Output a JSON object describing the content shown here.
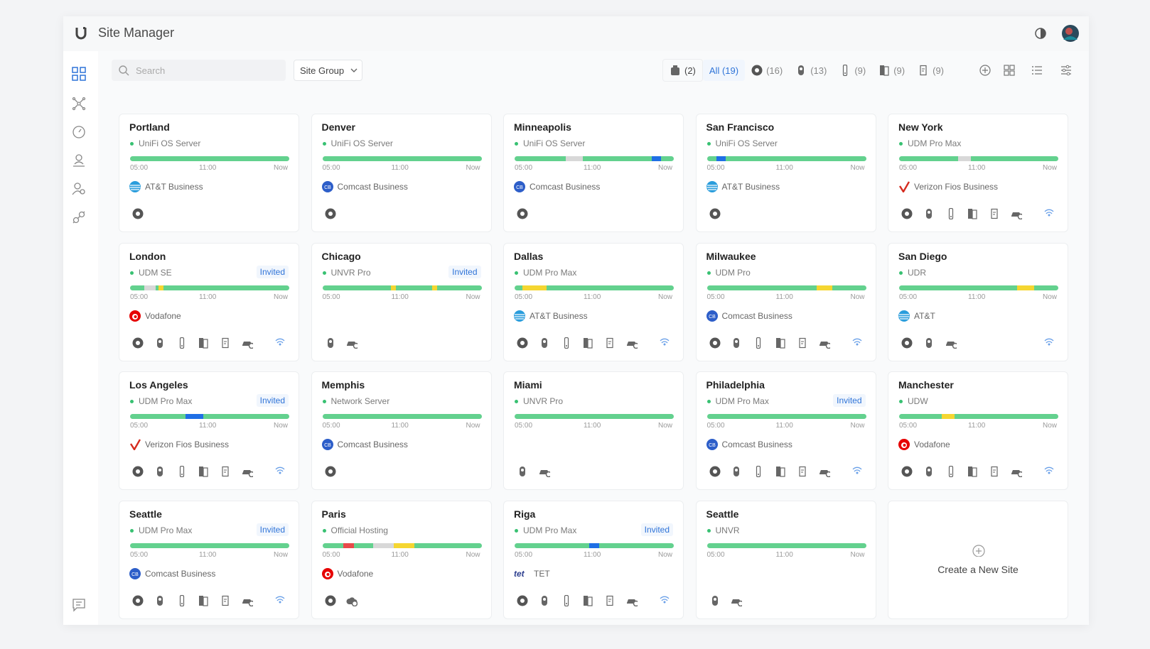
{
  "header": {
    "title": "Site Manager"
  },
  "toolbar": {
    "search_placeholder": "Search",
    "site_group": "Site Group",
    "filters": [
      {
        "icon": "gateway",
        "label": "(2)"
      },
      {
        "icon": "none",
        "label": "All (19)"
      },
      {
        "icon": "console",
        "label": "(16)"
      },
      {
        "icon": "camera",
        "label": "(13)"
      },
      {
        "icon": "doorbell",
        "label": "(9)"
      },
      {
        "icon": "door",
        "label": "(9)"
      },
      {
        "icon": "intercom",
        "label": "(9)"
      }
    ]
  },
  "timeline_labels": [
    "05:00",
    "11:00",
    "Now"
  ],
  "sites": [
    {
      "name": "Portland",
      "device": "UniFi OS Server",
      "isp": {
        "name": "AT&T Business",
        "logo": "att"
      },
      "timeline": [],
      "icons": [
        "console"
      ]
    },
    {
      "name": "Denver",
      "device": "UniFi OS Server",
      "isp": {
        "name": "Comcast Business",
        "logo": "cb"
      },
      "timeline": [],
      "icons": [
        "console"
      ]
    },
    {
      "name": "Minneapolis",
      "device": "UniFi OS Server",
      "isp": {
        "name": "Comcast Business",
        "logo": "cb"
      },
      "timeline": [
        {
          "status": "unknown",
          "from": 0.32,
          "to": 0.43
        },
        {
          "status": "down",
          "from": 0.86,
          "to": 0.92
        }
      ],
      "icons": [
        "console"
      ]
    },
    {
      "name": "San Francisco",
      "device": "UniFi OS Server",
      "isp": {
        "name": "AT&T Business",
        "logo": "att"
      },
      "timeline": [
        {
          "status": "down",
          "from": 0.06,
          "to": 0.12
        }
      ],
      "icons": [
        "console"
      ]
    },
    {
      "name": "New York",
      "device": "UDM Pro Max",
      "isp": {
        "name": "Verizon Fios Business",
        "logo": "verizon"
      },
      "timeline": [
        {
          "status": "unknown",
          "from": 0.37,
          "to": 0.45
        }
      ],
      "icons": [
        "console",
        "camera",
        "doorbell",
        "door",
        "intercom",
        "car",
        "wifi"
      ]
    },
    {
      "name": "London",
      "device": "UDM SE",
      "badge": "Invited",
      "isp": {
        "name": "Vodafone",
        "logo": "vodafone"
      },
      "timeline": [
        {
          "status": "unknown",
          "from": 0.09,
          "to": 0.16
        },
        {
          "status": "degraded",
          "from": 0.18,
          "to": 0.21
        }
      ],
      "icons": [
        "console",
        "camera",
        "doorbell",
        "door",
        "intercom",
        "car",
        "wifi"
      ]
    },
    {
      "name": "Chicago",
      "device": "UNVR Pro",
      "badge": "Invited",
      "timeline": [
        {
          "status": "degraded",
          "from": 0.43,
          "to": 0.46
        },
        {
          "status": "degraded",
          "from": 0.69,
          "to": 0.72
        }
      ],
      "icons": [
        "camera",
        "car"
      ]
    },
    {
      "name": "Dallas",
      "device": "UDM Pro Max",
      "isp": {
        "name": "AT&T Business",
        "logo": "att"
      },
      "timeline": [
        {
          "status": "degraded",
          "from": 0.05,
          "to": 0.2
        }
      ],
      "icons": [
        "console",
        "camera",
        "doorbell",
        "door",
        "intercom",
        "car",
        "wifi"
      ]
    },
    {
      "name": "Milwaukee",
      "device": "UDM Pro",
      "isp": {
        "name": "Comcast Business",
        "logo": "cb"
      },
      "timeline": [
        {
          "status": "degraded",
          "from": 0.69,
          "to": 0.79
        }
      ],
      "icons": [
        "console",
        "camera",
        "doorbell",
        "door",
        "intercom",
        "car",
        "wifi"
      ]
    },
    {
      "name": "San Diego",
      "device": "UDR",
      "isp": {
        "name": "AT&T",
        "logo": "att"
      },
      "timeline": [
        {
          "status": "degraded",
          "from": 0.74,
          "to": 0.85
        }
      ],
      "icons": [
        "console",
        "camera",
        "car",
        "wifi"
      ]
    },
    {
      "name": "Los Angeles",
      "device": "UDM Pro Max",
      "badge": "Invited",
      "isp": {
        "name": "Verizon Fios Business",
        "logo": "verizon"
      },
      "timeline": [
        {
          "status": "down",
          "from": 0.35,
          "to": 0.46
        }
      ],
      "icons": [
        "console",
        "camera",
        "doorbell",
        "door",
        "intercom",
        "car",
        "wifi"
      ]
    },
    {
      "name": "Memphis",
      "device": "Network Server",
      "isp": {
        "name": "Comcast Business",
        "logo": "cb"
      },
      "timeline": [],
      "icons": [
        "console"
      ]
    },
    {
      "name": "Miami",
      "device": "UNVR Pro",
      "timeline": [],
      "icons": [
        "camera",
        "car"
      ]
    },
    {
      "name": "Philadelphia",
      "device": "UDM Pro Max",
      "badge": "Invited",
      "isp": {
        "name": "Comcast Business",
        "logo": "cb"
      },
      "timeline": [],
      "icons": [
        "console",
        "camera",
        "doorbell",
        "door",
        "intercom",
        "car",
        "wifi"
      ]
    },
    {
      "name": "Manchester",
      "device": "UDW",
      "isp": {
        "name": "Vodafone",
        "logo": "vodafone"
      },
      "timeline": [
        {
          "status": "degraded",
          "from": 0.27,
          "to": 0.35
        }
      ],
      "icons": [
        "console",
        "camera",
        "doorbell",
        "door",
        "intercom",
        "car",
        "wifi"
      ]
    },
    {
      "name": "Seattle",
      "device": "UDM Pro Max",
      "badge": "Invited",
      "isp": {
        "name": "Comcast Business",
        "logo": "cb"
      },
      "timeline": [],
      "icons": [
        "console",
        "camera",
        "doorbell",
        "door",
        "intercom",
        "car",
        "wifi"
      ]
    },
    {
      "name": "Paris",
      "device": "Official Hosting",
      "isp": {
        "name": "Vodafone",
        "logo": "vodafone"
      },
      "timeline": [
        {
          "status": "offline",
          "from": 0.13,
          "to": 0.2
        },
        {
          "status": "unknown",
          "from": 0.32,
          "to": 0.45
        },
        {
          "status": "degraded",
          "from": 0.45,
          "to": 0.58
        }
      ],
      "icons": [
        "console",
        "cloud"
      ]
    },
    {
      "name": "Riga",
      "device": "UDM Pro Max",
      "badge": "Invited",
      "isp": {
        "name": "TET",
        "logo": "tet"
      },
      "timeline": [
        {
          "status": "down",
          "from": 0.47,
          "to": 0.53
        }
      ],
      "icons": [
        "console",
        "camera",
        "doorbell",
        "door",
        "intercom",
        "car",
        "wifi"
      ]
    },
    {
      "name": "Seattle",
      "device": "UNVR",
      "timeline": [],
      "icons": [
        "camera",
        "car"
      ]
    }
  ],
  "create_site": "Create a New Site"
}
